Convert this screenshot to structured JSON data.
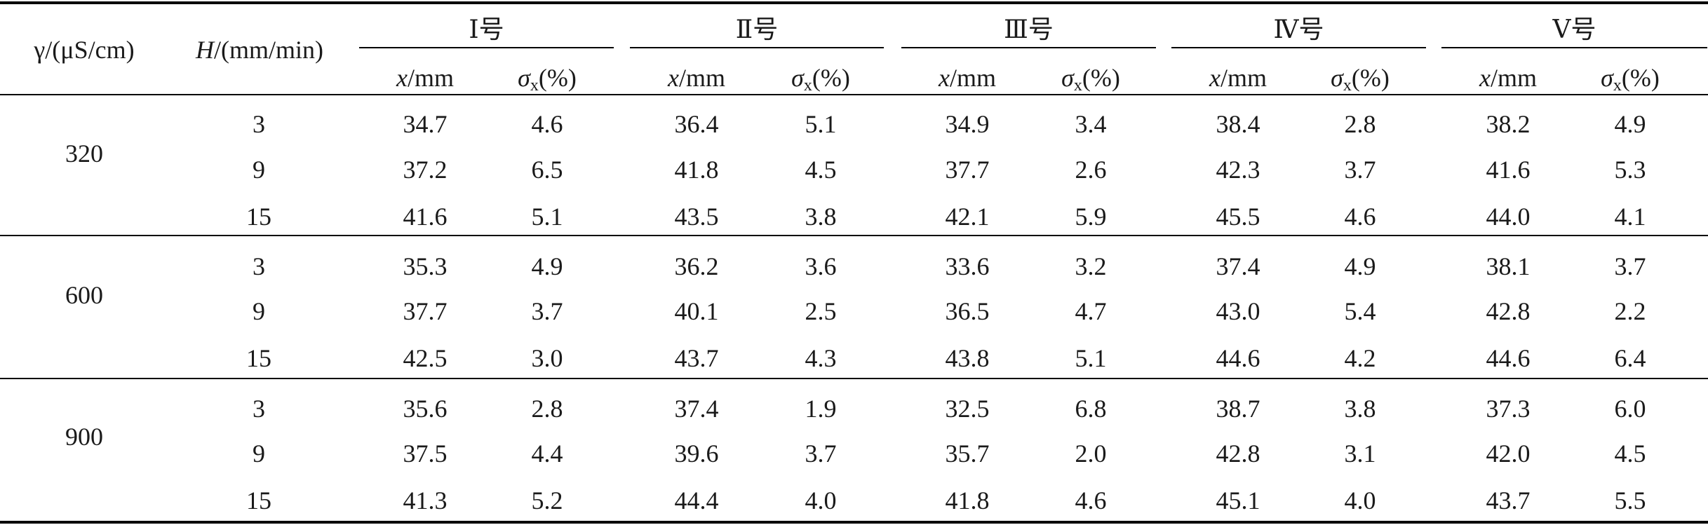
{
  "table": {
    "header": {
      "gamma_label": "γ/(μS/cm)",
      "H_label": "/(mm/min)",
      "H_symbol": "H",
      "groups": [
        "Ⅰ号",
        "Ⅱ号",
        "Ⅲ号",
        "Ⅳ号",
        "Ⅴ号"
      ],
      "x_col": "/mm",
      "x_symbol": "x",
      "sigma_symbol": "σ",
      "sigma_sub": "x",
      "sigma_unit": "(%)"
    },
    "blocks": [
      {
        "gamma": "320",
        "rows": [
          {
            "H": "3",
            "vals": [
              "34.7",
              "4.6",
              "36.4",
              "5.1",
              "34.9",
              "3.4",
              "38.4",
              "2.8",
              "38.2",
              "4.9"
            ]
          },
          {
            "H": "9",
            "vals": [
              "37.2",
              "6.5",
              "41.8",
              "4.5",
              "37.7",
              "2.6",
              "42.3",
              "3.7",
              "41.6",
              "5.3"
            ]
          },
          {
            "H": "15",
            "vals": [
              "41.6",
              "5.1",
              "43.5",
              "3.8",
              "42.1",
              "5.9",
              "45.5",
              "4.6",
              "44.0",
              "4.1"
            ]
          }
        ]
      },
      {
        "gamma": "600",
        "rows": [
          {
            "H": "3",
            "vals": [
              "35.3",
              "4.9",
              "36.2",
              "3.6",
              "33.6",
              "3.2",
              "37.4",
              "4.9",
              "38.1",
              "3.7"
            ]
          },
          {
            "H": "9",
            "vals": [
              "37.7",
              "3.7",
              "40.1",
              "2.5",
              "36.5",
              "4.7",
              "43.0",
              "5.4",
              "42.8",
              "2.2"
            ]
          },
          {
            "H": "15",
            "vals": [
              "42.5",
              "3.0",
              "43.7",
              "4.3",
              "43.8",
              "5.1",
              "44.6",
              "4.2",
              "44.6",
              "6.4"
            ]
          }
        ]
      },
      {
        "gamma": "900",
        "rows": [
          {
            "H": "3",
            "vals": [
              "35.6",
              "2.8",
              "37.4",
              "1.9",
              "32.5",
              "6.8",
              "38.7",
              "3.8",
              "37.3",
              "6.0"
            ]
          },
          {
            "H": "9",
            "vals": [
              "37.5",
              "4.4",
              "39.6",
              "3.7",
              "35.7",
              "2.0",
              "42.8",
              "3.1",
              "42.0",
              "4.5"
            ]
          },
          {
            "H": "15",
            "vals": [
              "41.3",
              "5.2",
              "44.4",
              "4.0",
              "41.8",
              "4.6",
              "45.1",
              "4.0",
              "43.7",
              "5.5"
            ]
          }
        ]
      }
    ]
  }
}
